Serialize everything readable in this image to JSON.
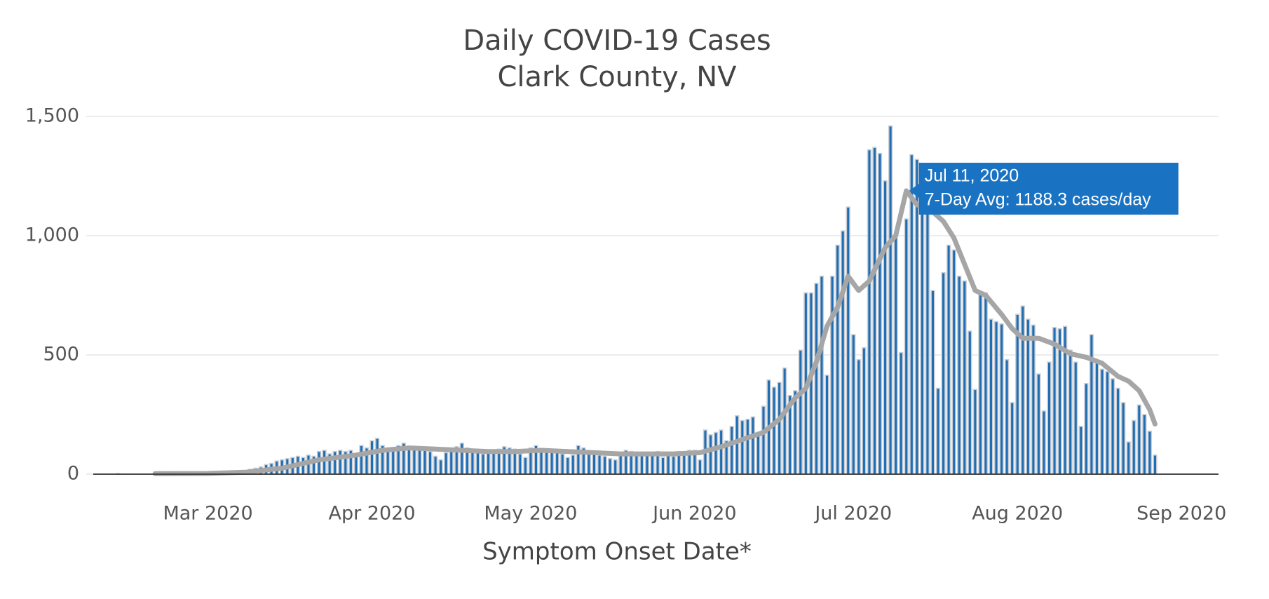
{
  "chart_data": {
    "type": "bar",
    "title": "Daily COVID-19 Cases",
    "subtitle": "Clark County, NV",
    "x_label": "Symptom Onset Date*",
    "xlim": [
      "2020-02-07",
      "2020-09-08"
    ],
    "xticks": [
      {
        "value": "2020-03-01",
        "label": "Mar 2020"
      },
      {
        "value": "2020-04-01",
        "label": "Apr 2020"
      },
      {
        "value": "2020-05-01",
        "label": "May 2020"
      },
      {
        "value": "2020-06-01",
        "label": "Jun 2020"
      },
      {
        "value": "2020-07-01",
        "label": "Jul 2020"
      },
      {
        "value": "2020-08-01",
        "label": "Aug 2020"
      },
      {
        "value": "2020-09-01",
        "label": "Sep 2020"
      }
    ],
    "ylim": [
      0,
      1500
    ],
    "yticks": [
      0,
      500,
      {
        "value": 1000,
        "label": "1,000"
      },
      {
        "value": 1500,
        "label": "1,500"
      }
    ],
    "grid": true,
    "series": [
      {
        "type": "bar",
        "color": "#1f6db3",
        "x": [
          "2020-02-13",
          "2020-02-14",
          "2020-02-15",
          "2020-02-16",
          "2020-02-17",
          "2020-02-18",
          "2020-02-19",
          "2020-02-20",
          "2020-02-21",
          "2020-02-22",
          "2020-02-23",
          "2020-02-24",
          "2020-02-25",
          "2020-02-26",
          "2020-02-27",
          "2020-02-28",
          "2020-02-29",
          "2020-03-01",
          "2020-03-02",
          "2020-03-03",
          "2020-03-04",
          "2020-03-05",
          "2020-03-06",
          "2020-03-07",
          "2020-03-08",
          "2020-03-09",
          "2020-03-10",
          "2020-03-11",
          "2020-03-12",
          "2020-03-13",
          "2020-03-14",
          "2020-03-15",
          "2020-03-16",
          "2020-03-17",
          "2020-03-18",
          "2020-03-19",
          "2020-03-20",
          "2020-03-21",
          "2020-03-22",
          "2020-03-23",
          "2020-03-24",
          "2020-03-25",
          "2020-03-26",
          "2020-03-27",
          "2020-03-28",
          "2020-03-29",
          "2020-03-30",
          "2020-03-31",
          "2020-04-01",
          "2020-04-02",
          "2020-04-03",
          "2020-04-04",
          "2020-04-05",
          "2020-04-06",
          "2020-04-07",
          "2020-04-08",
          "2020-04-09",
          "2020-04-10",
          "2020-04-11",
          "2020-04-12",
          "2020-04-13",
          "2020-04-14",
          "2020-04-15",
          "2020-04-16",
          "2020-04-17",
          "2020-04-18",
          "2020-04-19",
          "2020-04-20",
          "2020-04-21",
          "2020-04-22",
          "2020-04-23",
          "2020-04-24",
          "2020-04-25",
          "2020-04-26",
          "2020-04-27",
          "2020-04-28",
          "2020-04-29",
          "2020-04-30",
          "2020-05-01",
          "2020-05-02",
          "2020-05-03",
          "2020-05-04",
          "2020-05-05",
          "2020-05-06",
          "2020-05-07",
          "2020-05-08",
          "2020-05-09",
          "2020-05-10",
          "2020-05-11",
          "2020-05-12",
          "2020-05-13",
          "2020-05-14",
          "2020-05-15",
          "2020-05-16",
          "2020-05-17",
          "2020-05-18",
          "2020-05-19",
          "2020-05-20",
          "2020-05-21",
          "2020-05-22",
          "2020-05-23",
          "2020-05-24",
          "2020-05-25",
          "2020-05-26",
          "2020-05-27",
          "2020-05-28",
          "2020-05-29",
          "2020-05-30",
          "2020-05-31",
          "2020-06-01",
          "2020-06-02",
          "2020-06-03",
          "2020-06-04",
          "2020-06-05",
          "2020-06-06",
          "2020-06-07",
          "2020-06-08",
          "2020-06-09",
          "2020-06-10",
          "2020-06-11",
          "2020-06-12",
          "2020-06-13",
          "2020-06-14",
          "2020-06-15",
          "2020-06-16",
          "2020-06-17",
          "2020-06-18",
          "2020-06-19",
          "2020-06-20",
          "2020-06-21",
          "2020-06-22",
          "2020-06-23",
          "2020-06-24",
          "2020-06-25",
          "2020-06-26",
          "2020-06-27",
          "2020-06-28",
          "2020-06-29",
          "2020-06-30",
          "2020-07-01",
          "2020-07-02",
          "2020-07-03",
          "2020-07-04",
          "2020-07-05",
          "2020-07-06",
          "2020-07-07",
          "2020-07-08",
          "2020-07-09",
          "2020-07-10",
          "2020-07-11",
          "2020-07-12",
          "2020-07-13",
          "2020-07-14",
          "2020-07-15",
          "2020-07-16",
          "2020-07-17",
          "2020-07-18",
          "2020-07-19",
          "2020-07-20",
          "2020-07-21",
          "2020-07-22",
          "2020-07-23",
          "2020-07-24",
          "2020-07-25",
          "2020-07-26",
          "2020-07-27",
          "2020-07-28",
          "2020-07-29",
          "2020-07-30",
          "2020-07-31",
          "2020-08-01",
          "2020-08-02",
          "2020-08-03",
          "2020-08-04",
          "2020-08-05",
          "2020-08-06",
          "2020-08-07",
          "2020-08-08",
          "2020-08-09",
          "2020-08-10",
          "2020-08-11",
          "2020-08-12",
          "2020-08-13",
          "2020-08-14",
          "2020-08-15",
          "2020-08-16",
          "2020-08-17",
          "2020-08-18",
          "2020-08-19",
          "2020-08-20",
          "2020-08-21",
          "2020-08-22",
          "2020-08-23",
          "2020-08-24",
          "2020-08-25",
          "2020-08-26",
          "2020-08-27"
        ],
        "values": [
          2,
          0,
          0,
          0,
          0,
          0,
          0,
          0,
          0,
          0,
          0,
          1,
          0,
          1,
          1,
          2,
          3,
          3,
          4,
          5,
          6,
          8,
          10,
          12,
          15,
          20,
          25,
          30,
          40,
          45,
          55,
          60,
          65,
          70,
          75,
          70,
          80,
          75,
          95,
          100,
          85,
          95,
          100,
          95,
          100,
          85,
          120,
          110,
          140,
          150,
          120,
          95,
          110,
          120,
          130,
          115,
          105,
          110,
          100,
          95,
          75,
          60,
          90,
          100,
          115,
          130,
          110,
          95,
          90,
          85,
          95,
          100,
          105,
          115,
          110,
          105,
          85,
          70,
          110,
          120,
          95,
          100,
          105,
          90,
          85,
          70,
          80,
          120,
          110,
          90,
          85,
          80,
          75,
          65,
          60,
          85,
          100,
          95,
          90,
          80,
          85,
          90,
          95,
          70,
          80,
          75,
          95,
          90,
          100,
          100,
          60,
          185,
          165,
          175,
          185,
          140,
          200,
          245,
          225,
          230,
          240,
          175,
          285,
          395,
          365,
          385,
          445,
          330,
          350,
          520,
          760,
          760,
          800,
          830,
          415,
          830,
          960,
          1020,
          1120,
          585,
          480,
          530,
          1360,
          1370,
          1345,
          1230,
          1460,
          1000,
          510,
          1070,
          1340,
          1320,
          1150,
          1130,
          770,
          360,
          845,
          960,
          940,
          830,
          810,
          600,
          355,
          760,
          760,
          650,
          640,
          630,
          480,
          300,
          670,
          705,
          650,
          625,
          420,
          265,
          470,
          615,
          610,
          620,
          520,
          470,
          200,
          380,
          585,
          470,
          440,
          430,
          400,
          360,
          300,
          135,
          225,
          290,
          250,
          180,
          80
        ]
      },
      {
        "type": "line",
        "color": "#a6a6a6",
        "x": [
          "2020-02-20",
          "2020-03-01",
          "2020-03-08",
          "2020-03-15",
          "2020-03-22",
          "2020-03-29",
          "2020-04-03",
          "2020-04-08",
          "2020-04-13",
          "2020-04-18",
          "2020-04-23",
          "2020-04-28",
          "2020-05-03",
          "2020-05-08",
          "2020-05-13",
          "2020-05-18",
          "2020-05-23",
          "2020-05-28",
          "2020-06-02",
          "2020-06-06",
          "2020-06-10",
          "2020-06-14",
          "2020-06-17",
          "2020-06-20",
          "2020-06-22",
          "2020-06-24",
          "2020-06-26",
          "2020-06-28",
          "2020-06-30",
          "2020-07-02",
          "2020-07-04",
          "2020-07-07",
          "2020-07-09",
          "2020-07-11",
          "2020-07-13",
          "2020-07-16",
          "2020-07-18",
          "2020-07-20",
          "2020-07-22",
          "2020-07-24",
          "2020-07-26",
          "2020-07-29",
          "2020-07-31",
          "2020-08-02",
          "2020-08-05",
          "2020-08-08",
          "2020-08-11",
          "2020-08-14",
          "2020-08-17",
          "2020-08-20",
          "2020-08-22",
          "2020-08-24",
          "2020-08-26",
          "2020-08-27"
        ],
        "values": [
          2,
          3,
          8,
          25,
          60,
          80,
          100,
          110,
          105,
          100,
          95,
          95,
          100,
          95,
          90,
          85,
          85,
          85,
          90,
          115,
          145,
          175,
          230,
          320,
          360,
          470,
          620,
          700,
          830,
          770,
          810,
          950,
          1000,
          1188.3,
          1130,
          1100,
          1060,
          990,
          880,
          770,
          750,
          670,
          610,
          570,
          570,
          545,
          505,
          490,
          465,
          410,
          390,
          350,
          270,
          210
        ]
      }
    ],
    "tooltip": {
      "title": "Jul 11, 2020",
      "text": "7-Day Avg: 1188.3 cases/day",
      "color": "#1a73c2"
    }
  }
}
